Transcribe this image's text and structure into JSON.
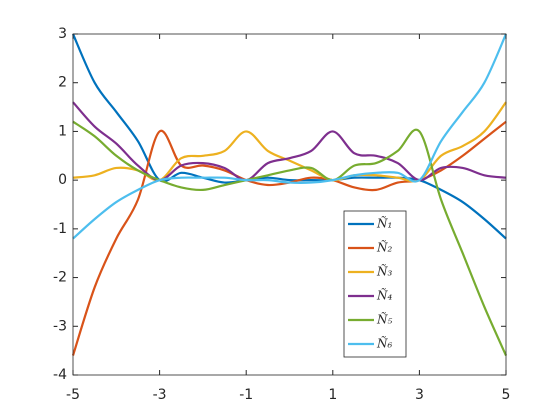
{
  "chart_data": {
    "type": "line",
    "x": [
      -5,
      -4.5,
      -4,
      -3.5,
      -3,
      -2.5,
      -2,
      -1.5,
      -1,
      -0.5,
      0,
      0.5,
      1,
      1.5,
      2,
      2.5,
      3,
      3.5,
      4,
      4.5,
      5
    ],
    "series": [
      {
        "name": "Ñ₁",
        "color": "#0072bd",
        "values": [
          3,
          2.0,
          1.4,
          0.8,
          0,
          0.15,
          0.05,
          -0.05,
          0,
          0.05,
          0,
          0,
          0,
          0.05,
          0.05,
          0.05,
          0,
          -0.2,
          -0.45,
          -0.8,
          -1.2
        ]
      },
      {
        "name": "Ñ₂",
        "color": "#d95319",
        "values": [
          -3.6,
          -2.2,
          -1.2,
          -0.4,
          1.0,
          0.3,
          0.3,
          0.2,
          0,
          -0.1,
          -0.05,
          0.05,
          0,
          -0.15,
          -0.2,
          -0.05,
          0,
          0.2,
          0.5,
          0.85,
          1.2
        ]
      },
      {
        "name": "Ñ₃",
        "color": "#edb120",
        "values": [
          0.05,
          0.1,
          0.25,
          0.2,
          0,
          0.45,
          0.5,
          0.6,
          1.0,
          0.6,
          0.4,
          0.2,
          0,
          0.1,
          0.1,
          0.05,
          0,
          0.5,
          0.7,
          1.0,
          1.6
        ]
      },
      {
        "name": "Ñ₄",
        "color": "#7e2f8e",
        "values": [
          1.6,
          1.1,
          0.75,
          0.3,
          0,
          0.3,
          0.35,
          0.25,
          0,
          0.35,
          0.45,
          0.6,
          1.0,
          0.55,
          0.5,
          0.35,
          0,
          0.25,
          0.25,
          0.1,
          0.05
        ]
      },
      {
        "name": "Ñ₅",
        "color": "#77ac30",
        "values": [
          1.2,
          0.9,
          0.5,
          0.2,
          0,
          -0.15,
          -0.2,
          -0.1,
          0,
          0.1,
          0.2,
          0.25,
          0,
          0.3,
          0.35,
          0.6,
          1.0,
          -0.4,
          -1.5,
          -2.6,
          -3.6
        ]
      },
      {
        "name": "Ñ₆",
        "color": "#4dbeee",
        "values": [
          -1.2,
          -0.8,
          -0.45,
          -0.2,
          0,
          0.05,
          0.05,
          0.05,
          0,
          0,
          -0.05,
          -0.05,
          0,
          0.1,
          0.15,
          0.15,
          0,
          0.8,
          1.4,
          2.0,
          3.0
        ]
      }
    ],
    "xlim": [
      -5,
      5
    ],
    "xticks": [
      -5,
      -3,
      -1,
      1,
      3,
      5
    ],
    "ylim": [
      -4,
      3
    ],
    "yticks": [
      -4,
      -3,
      -2,
      -1,
      0,
      1,
      2,
      3
    ],
    "grid": false,
    "legend": "southeast"
  }
}
